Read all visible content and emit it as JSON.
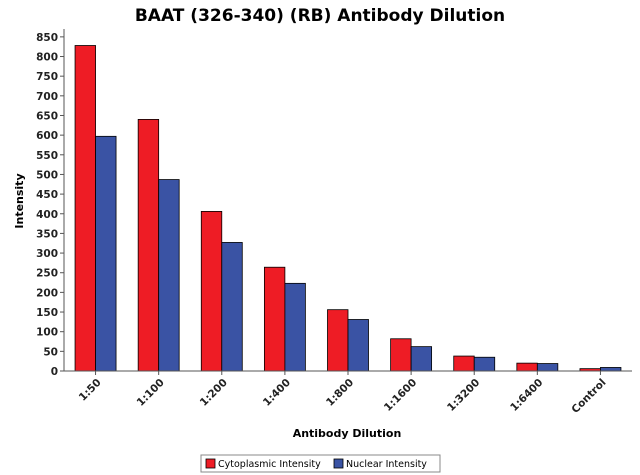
{
  "chart_data": {
    "type": "bar",
    "title": "BAAT (326-340) (RB) Antibody Dilution",
    "xlabel": "Antibody Dilution",
    "ylabel": "Intensity",
    "categories": [
      "1:50",
      "1:100",
      "1:200",
      "1:400",
      "1:800",
      "1:1600",
      "1:3200",
      "1:6400",
      "Control"
    ],
    "series": [
      {
        "name": "Cytoplasmic Intensity",
        "color": "#ee1c25",
        "values": [
          828,
          640,
          406,
          264,
          156,
          82,
          38,
          20,
          6
        ]
      },
      {
        "name": "Nuclear Intensity",
        "color": "#3a53a4",
        "values": [
          597,
          487,
          327,
          223,
          131,
          62,
          35,
          19,
          9
        ]
      }
    ],
    "ylim": [
      0,
      870
    ],
    "yticks": [
      0,
      50,
      100,
      150,
      200,
      250,
      300,
      350,
      400,
      450,
      500,
      550,
      600,
      650,
      700,
      750,
      800,
      850
    ],
    "grid": false,
    "legend": "bottom"
  }
}
